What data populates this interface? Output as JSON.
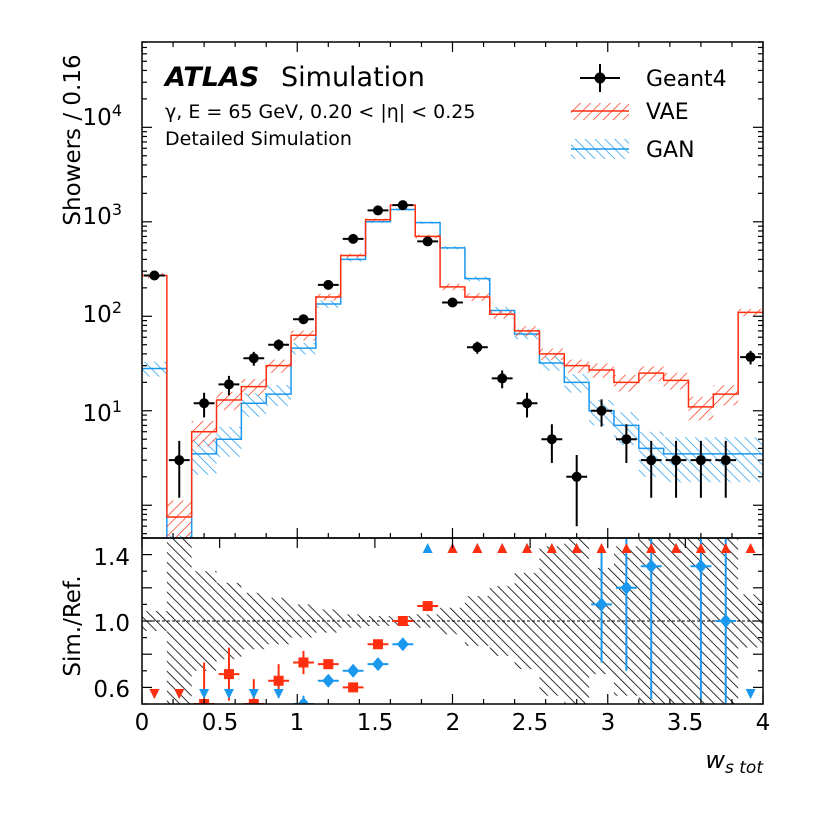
{
  "chart_data": [
    {
      "type": "step",
      "panel": "main",
      "ylabel": "Showers / 0.16",
      "yscale": "log",
      "ylim": [
        0.45,
        80000
      ],
      "xlim": [
        0,
        4
      ],
      "y_tick_labels": [
        "10^1",
        "10^2",
        "10^3",
        "10^4"
      ],
      "annotation": {
        "brand": "ATLAS",
        "brand_suffix": "Simulation",
        "line1": "γ, E = 65 GeV, 0.20 < |η| < 0.25",
        "line2": "Detailed Simulation"
      },
      "legend": {
        "placement": "top-right",
        "entries": [
          "Geant4",
          "VAE",
          "GAN"
        ]
      },
      "colors": {
        "geant4": "#000000",
        "vae": "#ff2e0e",
        "gan": "#1a98ee"
      },
      "bin_edges": [
        0,
        0.16,
        0.32,
        0.48,
        0.64,
        0.8,
        0.96,
        1.12,
        1.28,
        1.44,
        1.6,
        1.76,
        1.92,
        2.08,
        2.24,
        2.4,
        2.56,
        2.72,
        2.88,
        3.04,
        3.2,
        3.36,
        3.52,
        3.68,
        3.84,
        4.0
      ],
      "series": [
        {
          "name": "Geant4",
          "style": "points",
          "values": [
            270,
            3,
            12,
            19,
            36,
            50,
            93,
            215,
            660,
            1320,
            1500,
            620,
            140,
            47,
            22,
            12,
            5,
            2,
            10,
            5,
            3,
            3,
            3,
            3,
            37
          ],
          "errors": [
            16,
            1.8,
            3.5,
            4.4,
            6,
            7,
            9.6,
            14.7,
            25.7,
            36,
            39,
            25,
            11.8,
            6.9,
            4.7,
            3.5,
            2.2,
            1.4,
            3.2,
            2.2,
            1.8,
            1.8,
            1.8,
            1.8,
            6.1
          ]
        },
        {
          "name": "VAE",
          "style": "step-hatched",
          "values": [
            270,
            0.75,
            6,
            13,
            18,
            30,
            63,
            160,
            440,
            1050,
            1500,
            700,
            205,
            160,
            105,
            70,
            40,
            30,
            27,
            20,
            25,
            21,
            11,
            15,
            110
          ],
          "rel_unc": [
            0.06,
            0.5,
            0.3,
            0.22,
            0.2,
            0.16,
            0.12,
            0.08,
            0.05,
            0.035,
            0.03,
            0.045,
            0.08,
            0.09,
            0.1,
            0.12,
            0.14,
            0.16,
            0.17,
            0.2,
            0.18,
            0.2,
            0.28,
            0.24,
            0.09
          ]
        },
        {
          "name": "GAN",
          "style": "step-hatched",
          "values": [
            28,
            0.3,
            3.5,
            5,
            12,
            15,
            46,
            135,
            400,
            1000,
            1350,
            980,
            530,
            250,
            115,
            65,
            32,
            20,
            10,
            7,
            4,
            3.5,
            3.5,
            3.5,
            3.5
          ],
          "rel_unc": [
            0.18,
            0.6,
            0.4,
            0.35,
            0.28,
            0.25,
            0.14,
            0.09,
            0.05,
            0.03,
            0.03,
            0.03,
            0.04,
            0.06,
            0.09,
            0.12,
            0.17,
            0.22,
            0.3,
            0.38,
            0.5,
            0.5,
            0.5,
            0.5,
            0.5
          ]
        }
      ]
    },
    {
      "type": "ratio",
      "panel": "ratio",
      "xlabel": "w_stot",
      "ylabel": "Sim./Ref.",
      "ylim": [
        0.5,
        1.5
      ],
      "xlim": [
        0,
        4
      ],
      "x_ticks": [
        0,
        0.5,
        1,
        1.5,
        2,
        2.5,
        3,
        3.5,
        4
      ],
      "x_tick_labels": [
        "0",
        "0.5",
        "1",
        "1.5",
        "2",
        "2.5",
        "3",
        "3.5",
        "4"
      ],
      "y_tick_labels": [
        "0.6",
        "1.0",
        "1.4"
      ],
      "reference_line": 1.0,
      "ref_band": [
        0.06,
        0.6,
        0.3,
        0.23,
        0.17,
        0.14,
        0.1,
        0.07,
        0.04,
        0.03,
        0.03,
        0.04,
        0.08,
        0.15,
        0.21,
        0.29,
        0.45,
        0.71,
        0.32,
        0.45,
        0.58,
        0.58,
        0.58,
        0.58,
        0.16
      ],
      "series": [
        {
          "name": "VAE",
          "marker": "square",
          "values": [
            0.95,
            0.5,
            0.5,
            0.68,
            0.5,
            0.64,
            0.75,
            0.74,
            0.6,
            0.86,
            1.0,
            1.09,
            1.46,
            1.46,
            1.46,
            1.46,
            1.46,
            1.46,
            1.46,
            1.46,
            1.46,
            1.46,
            1.46,
            1.46,
            1.46
          ],
          "errors": [
            0.03,
            0.3,
            0.25,
            0.16,
            0.15,
            0.1,
            0.07,
            0.03,
            0.015,
            0.02,
            0.02,
            0.02,
            0,
            0,
            0,
            0,
            0,
            0,
            0,
            0,
            0,
            0,
            0,
            0,
            0
          ],
          "offscale": [
            "down",
            "down",
            "",
            "",
            "",
            "",
            "",
            "",
            "",
            "",
            "",
            "",
            "up",
            "up",
            "up",
            "up",
            "up",
            "up",
            "up",
            "up",
            "up",
            "up",
            "up",
            "up",
            "up"
          ]
        },
        {
          "name": "GAN",
          "marker": "diamond",
          "values": [
            0.5,
            0.5,
            0.5,
            0.5,
            0.5,
            0.5,
            0.5,
            0.64,
            0.7,
            0.74,
            0.86,
            1.46,
            1.46,
            1.46,
            1.46,
            1.46,
            1.46,
            1.46,
            1.1,
            1.2,
            1.33,
            1.46,
            1.33,
            1.0,
            0.5
          ],
          "errors": [
            0,
            0,
            0,
            0,
            0,
            0,
            0.05,
            0.03,
            0.015,
            0.02,
            0.02,
            0,
            0,
            0,
            0,
            0,
            0,
            0,
            0.35,
            0.5,
            0.8,
            0,
            0.8,
            0.6,
            0
          ],
          "offscale": [
            "down",
            "down",
            "down",
            "down",
            "down",
            "down",
            "",
            "",
            "",
            "",
            "",
            "up",
            "up",
            "up",
            "up",
            "up",
            "up",
            "up",
            "",
            "",
            "",
            "up",
            "",
            "",
            "down"
          ]
        }
      ]
    }
  ]
}
